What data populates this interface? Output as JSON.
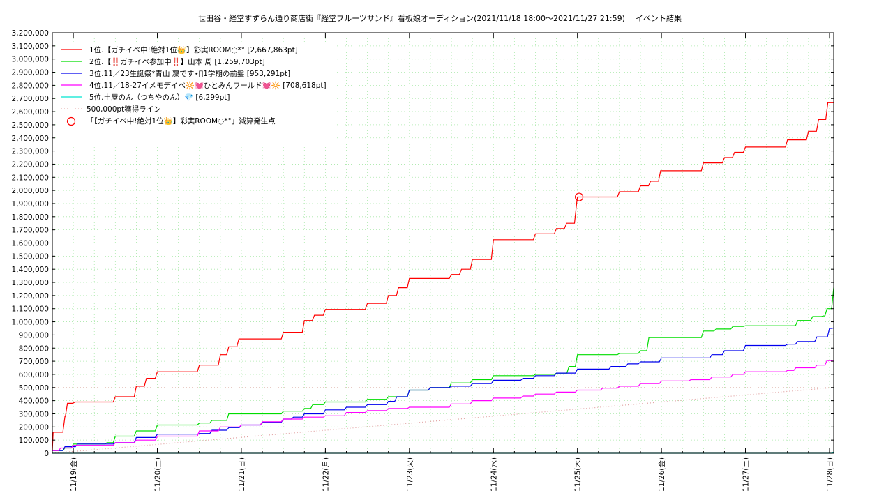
{
  "chart_data": {
    "type": "line",
    "title": "世田谷・経堂すずらん通り商店街『経堂フルーツサンド』看板娘オーディション(2021/11/18 18:00〜2021/11/27 21:59)",
    "title_suffix": "イベント結果",
    "xlabel": "",
    "ylabel": "",
    "x_tick_labels": [
      "11/19(金)",
      "11/20(土)",
      "11/21(日)",
      "11/22(月)",
      "11/23(火)",
      "11/24(水)",
      "11/25(木)",
      "11/26(金)",
      "11/27(土)",
      "11/28(日)"
    ],
    "x_tick_days": [
      1,
      2,
      3,
      4,
      5,
      6,
      7,
      8,
      9,
      10
    ],
    "xlim_days": [
      0.75,
      10.05
    ],
    "ylim": [
      0,
      3200000
    ],
    "y_tick_step": 100000,
    "grid": true,
    "legend_position": "top-left",
    "series": [
      {
        "name": "1位.【ガチイベ中!絶対1位👑】彩実ROOM◌*° [2,667,863pt]",
        "color": "#ff0000",
        "x": [
          0.75,
          0.76,
          0.9,
          0.93,
          1.02,
          1.05,
          1.5,
          1.75,
          1.87,
          2.0,
          2.5,
          2.75,
          2.85,
          2.97,
          3.5,
          3.75,
          3.87,
          4.0,
          4.5,
          4.75,
          4.87,
          5.0,
          5.5,
          5.62,
          5.75,
          6.0,
          6.5,
          6.75,
          6.87,
          6.99,
          7.0,
          7.5,
          7.75,
          7.87,
          7.99,
          8.5,
          8.75,
          8.87,
          9.0,
          9.5,
          9.75,
          9.87,
          9.98,
          10.05
        ],
        "y": [
          20000,
          160000,
          280000,
          380000,
          390000,
          390000,
          430000,
          510000,
          570000,
          620000,
          670000,
          750000,
          810000,
          870000,
          920000,
          1010000,
          1050000,
          1095000,
          1140000,
          1200000,
          1260000,
          1330000,
          1360000,
          1400000,
          1475000,
          1625000,
          1670000,
          1710000,
          1750000,
          1900000,
          1950000,
          1990000,
          2035000,
          2070000,
          2150000,
          2210000,
          2250000,
          2290000,
          2330000,
          2385000,
          2450000,
          2540000,
          2667863,
          2667863
        ],
        "annotation_x": 7.02,
        "annotation_y": 1950000
      },
      {
        "name": "2位.【‼️ガチイベ参加中‼️】山本 周 [1,259,703pt]",
        "color": "#00dd00",
        "x": [
          0.75,
          0.9,
          1.0,
          1.4,
          1.5,
          1.75,
          2.0,
          2.5,
          2.65,
          2.85,
          3.0,
          3.5,
          3.75,
          3.85,
          4.0,
          4.5,
          4.75,
          5.0,
          5.25,
          5.5,
          5.75,
          6.0,
          6.5,
          6.75,
          6.9,
          7.0,
          7.5,
          7.75,
          7.85,
          8.0,
          8.5,
          8.65,
          8.85,
          9.0,
          9.5,
          9.62,
          9.8,
          9.93,
          9.97,
          10.05
        ],
        "y": [
          20000,
          40000,
          70000,
          80000,
          130000,
          170000,
          215000,
          230000,
          250000,
          300000,
          300000,
          320000,
          340000,
          370000,
          390000,
          410000,
          430000,
          480000,
          500000,
          535000,
          560000,
          590000,
          600000,
          610000,
          660000,
          750000,
          760000,
          780000,
          880000,
          880000,
          930000,
          945000,
          965000,
          970000,
          970000,
          1010000,
          1040000,
          1045000,
          1100000,
          1259703
        ],
        "annotation_x": null,
        "annotation_y": null
      },
      {
        "name": "3位.11／23生誕祭*青山 凜です⋆͛1学期の前髪 [953,291pt]",
        "color": "#0000ee",
        "x": [
          0.75,
          0.9,
          1.05,
          1.5,
          1.75,
          2.0,
          2.5,
          2.65,
          2.85,
          3.0,
          3.25,
          3.5,
          3.62,
          3.75,
          4.0,
          4.25,
          4.5,
          4.75,
          4.85,
          5.0,
          5.25,
          5.5,
          5.75,
          6.0,
          6.35,
          6.5,
          6.75,
          7.0,
          7.4,
          7.6,
          7.75,
          8.0,
          8.5,
          8.6,
          8.75,
          9.0,
          9.5,
          9.62,
          9.85,
          10.0,
          10.05
        ],
        "y": [
          20000,
          50000,
          70000,
          80000,
          120000,
          145000,
          150000,
          175000,
          195000,
          215000,
          235000,
          260000,
          275000,
          300000,
          330000,
          350000,
          370000,
          395000,
          430000,
          480000,
          500000,
          510000,
          530000,
          555000,
          570000,
          590000,
          610000,
          640000,
          660000,
          680000,
          695000,
          725000,
          725000,
          750000,
          780000,
          820000,
          830000,
          850000,
          885000,
          950000,
          953291
        ],
        "annotation_x": null,
        "annotation_y": null
      },
      {
        "name": "4位.11／18-27イメモデイベ🔆💓ひとみんワールド💓🔆 [708,618pt]",
        "color": "#ff00ff",
        "x": [
          0.75,
          0.85,
          1.0,
          1.5,
          1.75,
          2.0,
          2.5,
          2.75,
          3.0,
          3.25,
          3.5,
          3.75,
          4.0,
          4.25,
          4.5,
          4.75,
          5.0,
          5.5,
          5.75,
          6.0,
          6.35,
          6.5,
          6.75,
          7.0,
          7.3,
          7.5,
          7.75,
          8.0,
          8.35,
          8.6,
          8.85,
          9.0,
          9.5,
          9.6,
          9.85,
          9.97,
          10.05
        ],
        "y": [
          20000,
          40000,
          60000,
          80000,
          100000,
          130000,
          170000,
          200000,
          215000,
          240000,
          260000,
          275000,
          285000,
          310000,
          325000,
          340000,
          350000,
          375000,
          400000,
          420000,
          435000,
          450000,
          465000,
          480000,
          495000,
          510000,
          530000,
          550000,
          560000,
          580000,
          600000,
          620000,
          630000,
          650000,
          670000,
          705000,
          708618
        ],
        "annotation_x": null,
        "annotation_y": null
      },
      {
        "name": "5位.土屋のん（つちやのん）💎 [6,299pt]",
        "color": "#00e5d0",
        "x": [
          0.75,
          10.05
        ],
        "y": [
          0,
          6299
        ],
        "annotation_x": null,
        "annotation_y": null
      },
      {
        "name": "500,000pt獲得ライン",
        "color": "#e0a0a0",
        "style": "dotted",
        "x": [
          0.75,
          10.05
        ],
        "y": [
          0,
          500000
        ],
        "annotation_x": null,
        "annotation_y": null
      }
    ],
    "reference_line_y": 500000,
    "marker_legend": "「【ガチイベ中!絶対1位👑】彩実ROOM◌*°」減算発生点",
    "marker_color": "#ff0000"
  }
}
